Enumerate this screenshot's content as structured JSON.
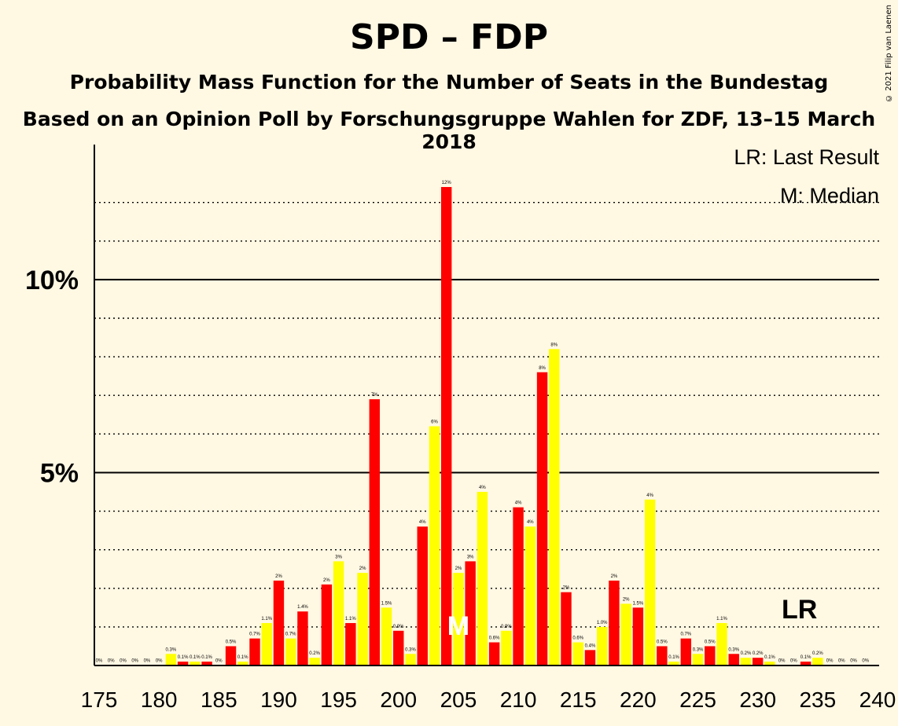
{
  "title": "SPD – FDP",
  "subtitle": "Probability Mass Function for the Number of Seats in the Bundestag",
  "subtitle2": "Based on an Opinion Poll by Forschungsgruppe Wahlen for ZDF, 13–15 March 2018",
  "copyright": "© 2021 Filip van Laenen",
  "legend": {
    "lr": "LR: Last Result",
    "m": "M: Median"
  },
  "markers": {
    "lr_label": "LR",
    "lr_seat": 234,
    "median_label": "M",
    "median_seat": 205
  },
  "colors": {
    "background": "#FFF8E3",
    "red": "#FF0000",
    "yellow": "#FFFF00",
    "axis": "#000000"
  },
  "chart_data": {
    "type": "bar",
    "xlabel": "",
    "ylabel": "",
    "xlim": [
      175,
      240
    ],
    "ylim": [
      0,
      0.135
    ],
    "xticks": [
      175,
      180,
      185,
      190,
      195,
      200,
      205,
      210,
      215,
      220,
      225,
      230,
      235,
      240
    ],
    "xtick_labels": [
      "175",
      "180",
      "185",
      "190",
      "195",
      "200",
      "205",
      "210",
      "215",
      "220",
      "225",
      "230",
      "235",
      "240"
    ],
    "yticks": [
      0.05,
      0.1
    ],
    "ytick_labels": [
      "5%",
      "10%"
    ],
    "grid": true,
    "x": [
      175,
      176,
      177,
      178,
      179,
      180,
      181,
      182,
      183,
      184,
      185,
      186,
      187,
      188,
      189,
      190,
      191,
      192,
      193,
      194,
      195,
      196,
      197,
      198,
      199,
      200,
      201,
      202,
      203,
      204,
      205,
      206,
      207,
      208,
      209,
      210,
      211,
      212,
      213,
      214,
      215,
      216,
      217,
      218,
      219,
      220,
      221,
      222,
      223,
      224,
      225,
      226,
      227,
      228,
      229,
      230,
      231,
      232,
      233,
      234,
      235,
      236,
      237,
      238,
      239
    ],
    "values": [
      0.0001,
      0.0001,
      0.0001,
      0.0001,
      0.0001,
      0.0001,
      0.003,
      0.001,
      0.001,
      0.001,
      0.0001,
      0.005,
      0.001,
      0.007,
      0.011,
      0.022,
      0.007,
      0.014,
      0.002,
      0.021,
      0.027,
      0.011,
      0.024,
      0.069,
      0.015,
      0.009,
      0.003,
      0.036,
      0.062,
      0.124,
      0.024,
      0.027,
      0.045,
      0.006,
      0.009,
      0.041,
      0.036,
      0.076,
      0.082,
      0.019,
      0.006,
      0.004,
      0.01,
      0.022,
      0.016,
      0.015,
      0.043,
      0.005,
      0.001,
      0.007,
      0.003,
      0.005,
      0.011,
      0.003,
      0.002,
      0.002,
      0.001,
      0.0001,
      0.0001,
      0.001,
      0.002,
      0.0001,
      0.0001,
      0.0001,
      0.0001
    ],
    "bar_labels": [
      "0%",
      "0%",
      "0%",
      "0%",
      "0%",
      "0%",
      "0.3%",
      "0.1%",
      "0.1%",
      "0.1%",
      "0%",
      "0.5%",
      "0.1%",
      "0.7%",
      "1.1%",
      "2%",
      "0.7%",
      "1.4%",
      "0.2%",
      "2%",
      "3%",
      "1.1%",
      "2%",
      "7%",
      "1.5%",
      "0.9%",
      "0.3%",
      "4%",
      "6%",
      "12%",
      "2%",
      "3%",
      "4%",
      "0.6%",
      "0.9%",
      "4%",
      "4%",
      "8%",
      "8%",
      "2%",
      "0.6%",
      "0.4%",
      "1.0%",
      "2%",
      "2%",
      "1.5%",
      "4%",
      "0.5%",
      "0.1%",
      "0.7%",
      "0.3%",
      "0.5%",
      "1.1%",
      "0.3%",
      "0.2%",
      "0.2%",
      "0.1%",
      "0%",
      "0%",
      "0.1%",
      "0.2%",
      "0%",
      "0%",
      "0%",
      "0%"
    ],
    "bar_colors": [
      "#FF0000",
      "#FFFF00",
      "#FF0000",
      "#FFFF00",
      "#FF0000",
      "#FFFF00",
      "#FFFF00",
      "#FF0000",
      "#FFFF00",
      "#FF0000",
      "#FFFF00",
      "#FF0000",
      "#FFFF00",
      "#FF0000",
      "#FFFF00",
      "#FF0000",
      "#FFFF00",
      "#FF0000",
      "#FFFF00",
      "#FF0000",
      "#FFFF00",
      "#FF0000",
      "#FFFF00",
      "#FF0000",
      "#FFFF00",
      "#FF0000",
      "#FFFF00",
      "#FF0000",
      "#FFFF00",
      "#FF0000",
      "#FFFF00",
      "#FF0000",
      "#FFFF00",
      "#FF0000",
      "#FFFF00",
      "#FF0000",
      "#FFFF00",
      "#FF0000",
      "#FFFF00",
      "#FF0000",
      "#FFFF00",
      "#FF0000",
      "#FFFF00",
      "#FF0000",
      "#FFFF00",
      "#FF0000",
      "#FFFF00",
      "#FF0000",
      "#FFFF00",
      "#FF0000",
      "#FFFF00",
      "#FF0000",
      "#FFFF00",
      "#FF0000",
      "#FFFF00",
      "#FF0000",
      "#FFFF00",
      "#FF0000",
      "#FFFF00",
      "#FF0000",
      "#FFFF00",
      "#FF0000",
      "#FFFF00",
      "#FF0000",
      "#FFFF00"
    ]
  }
}
